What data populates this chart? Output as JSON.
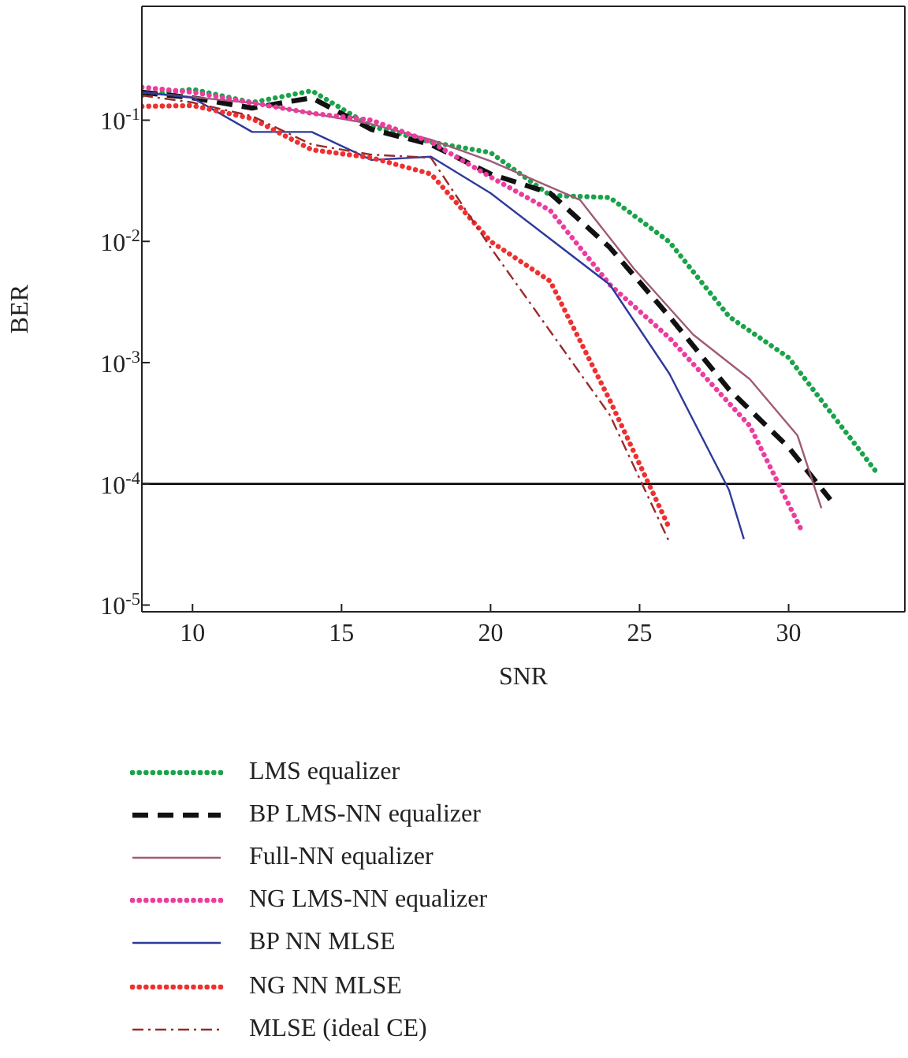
{
  "chart_data": {
    "type": "line",
    "xlabel": "SNR",
    "ylabel": "BER",
    "log": "y",
    "legend": "bottom",
    "marker": "none",
    "xlim": [
      8.3,
      33.9
    ],
    "xticks": [
      10,
      15,
      20,
      25,
      30
    ],
    "ylim": [
      8.8e-06,
      0.87
    ],
    "yticks": [
      {
        "value": 0.1,
        "label": "10$^{-1}$"
      },
      {
        "value": 0.01,
        "label": "10$^{-2}$"
      },
      {
        "value": 0.001,
        "label": "10$^{-3}$"
      },
      {
        "value": 0.0001,
        "label": "10$^{-4}$"
      },
      {
        "value": 1e-05,
        "label": "10$^{-5}$"
      }
    ],
    "ref_lines": [
      {
        "axis": "y",
        "value": 0.0001,
        "color": "#000000",
        "line_style": "solid"
      }
    ],
    "series": [
      {
        "name": "LMS equalizer",
        "color": "#1aa34a",
        "line_style": "dotted",
        "x": [
          8.3,
          10,
          12,
          14,
          16,
          18,
          20,
          22,
          24,
          26,
          28,
          30,
          33
        ],
        "values": [
          0.16,
          0.18,
          0.14,
          0.175,
          0.089,
          0.066,
          0.054,
          0.024,
          0.023,
          0.0099,
          0.0024,
          0.0011,
          0.00012
        ]
      },
      {
        "name": "BP LMS-NN equalizer",
        "color": "#111111",
        "line_style": "dashed",
        "x": [
          8.3,
          10,
          12,
          14,
          16,
          18,
          20,
          22,
          24,
          26,
          28,
          30,
          31.4
        ],
        "values": [
          0.17,
          0.153,
          0.126,
          0.153,
          0.084,
          0.063,
          0.036,
          0.025,
          0.0089,
          0.0024,
          0.0006,
          0.0002,
          7.4e-05
        ]
      },
      {
        "name": "Full-NN equalizer",
        "color": "#a05a78",
        "line_style": "solid",
        "x": [
          8.3,
          12,
          14,
          16,
          18,
          20,
          23,
          24.8,
          26.8,
          28.7,
          30.3,
          31.1
        ],
        "values": [
          0.17,
          0.139,
          0.114,
          0.093,
          0.069,
          0.046,
          0.022,
          0.006,
          0.0017,
          0.00073,
          0.00025,
          6.3e-05
        ]
      },
      {
        "name": "NG LMS-NN equalizer",
        "color": "#ec3c9e",
        "line_style": "dotted",
        "x": [
          8.3,
          10,
          12,
          14,
          16,
          18,
          20,
          22,
          24,
          26,
          28.7,
          30.4
        ],
        "values": [
          0.187,
          0.17,
          0.139,
          0.114,
          0.1,
          0.066,
          0.034,
          0.018,
          0.0044,
          0.0016,
          0.0003,
          4.3e-05
        ]
      },
      {
        "name": "BP NN MLSE",
        "color": "#2e3a9a",
        "line_style": "solid",
        "x": [
          8.3,
          10,
          12,
          14,
          16,
          18,
          20,
          24,
          26,
          28,
          28.5
        ],
        "values": [
          0.17,
          0.153,
          0.08,
          0.08,
          0.047,
          0.05,
          0.025,
          0.0044,
          0.00081,
          8.9e-05,
          3.5e-05
        ]
      },
      {
        "name": "NG NN MLSE",
        "color": "#ee3030",
        "line_style": "dotted",
        "x": [
          8.3,
          10,
          12,
          14,
          16,
          18,
          20,
          22,
          24,
          26
        ],
        "values": [
          0.13,
          0.132,
          0.103,
          0.057,
          0.049,
          0.036,
          0.01,
          0.0047,
          0.00049,
          4.3e-05
        ]
      },
      {
        "name": "MLSE (ideal CE)",
        "color": "#9b2a2a",
        "line_style": "dashdot",
        "x": [
          8.3,
          10,
          12,
          14,
          16,
          18,
          20,
          24,
          26
        ],
        "values": [
          0.16,
          0.14,
          0.108,
          0.063,
          0.052,
          0.049,
          0.0089,
          0.00037,
          3.3e-05
        ]
      }
    ]
  }
}
